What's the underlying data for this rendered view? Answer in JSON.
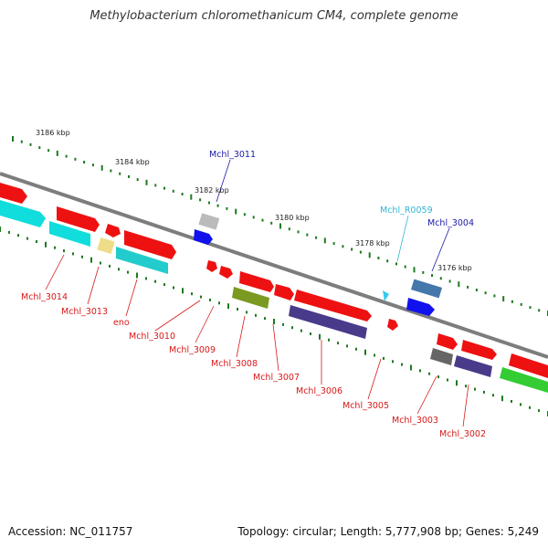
{
  "title": "Methylobacterium chloromethanicum CM4, complete genome",
  "footer": {
    "accession": "Accession: NC_011757",
    "info": "Topology: circular; Length: 5,777,908 bp; Genes: 5,249"
  },
  "scale_labels": [
    "3186 kbp",
    "3184 kbp",
    "3182 kbp",
    "3180 kbp",
    "3178 kbp",
    "3176 kbp"
  ],
  "gene_labels": [
    {
      "text": "Mchl_3011",
      "color": "#1a1aa8"
    },
    {
      "text": "Mchl_R0059",
      "color": "#33b5d6"
    },
    {
      "text": "Mchl_3004",
      "color": "#1a1aa8"
    },
    {
      "text": "Mchl_3014",
      "color": "#d81818"
    },
    {
      "text": "Mchl_3013",
      "color": "#d81818"
    },
    {
      "text": "eno",
      "color": "#d81818"
    },
    {
      "text": "Mchl_3010",
      "color": "#d81818"
    },
    {
      "text": "Mchl_3009",
      "color": "#d81818"
    },
    {
      "text": "Mchl_3008",
      "color": "#d81818"
    },
    {
      "text": "Mchl_3007",
      "color": "#d81818"
    },
    {
      "text": "Mchl_3006",
      "color": "#d81818"
    },
    {
      "text": "Mchl_3005",
      "color": "#d81818"
    },
    {
      "text": "Mchl_3003",
      "color": "#d81818"
    },
    {
      "text": "Mchl_3002",
      "color": "#d81818"
    }
  ],
  "colors": {
    "backbone": "#8a8a8a",
    "tick": "#1f7a1f",
    "gene_red": "#ee1111",
    "gene_cyan": "#11dddd",
    "gene_blue": "#1111ee",
    "gene_olive": "#7a9a22",
    "gene_purple": "#4a3a8a",
    "gene_green": "#33cc33",
    "gene_gray": "#666666",
    "gene_lightgray": "#bbbbbb",
    "gene_khaki": "#eedd88",
    "gene_steel": "#4477aa",
    "gene_sky": "#33ccee"
  }
}
